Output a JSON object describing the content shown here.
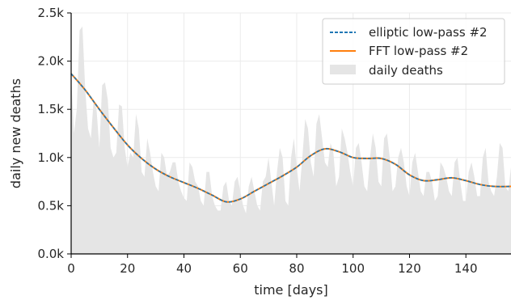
{
  "chart_data": {
    "type": "line",
    "title": "",
    "xlabel": "time [days]",
    "ylabel": "daily new deaths",
    "xlim": [
      0,
      156
    ],
    "ylim": [
      0,
      2500
    ],
    "xticks": [
      0,
      20,
      40,
      60,
      80,
      100,
      120,
      140
    ],
    "xtick_labels": [
      "0",
      "20",
      "40",
      "60",
      "80",
      "100",
      "120",
      "140"
    ],
    "yticks": [
      0,
      500,
      1000,
      1500,
      2000,
      2500
    ],
    "ytick_labels": [
      "0.0k",
      "0.5k",
      "1.0k",
      "1.5k",
      "2.0k",
      "2.5k"
    ],
    "grid": true,
    "legend_position": "top-right",
    "colors": {
      "elliptic": "#1f77b4",
      "fft": "#ff7f0e",
      "area": "#e5e5e5",
      "grid": "#ebebeb",
      "axis": "#000000"
    },
    "series": [
      {
        "name": "elliptic low-pass #2",
        "style": "dashed",
        "x": [
          0,
          5,
          10,
          15,
          20,
          25,
          30,
          35,
          40,
          45,
          50,
          55,
          60,
          65,
          70,
          75,
          80,
          85,
          90,
          95,
          100,
          105,
          110,
          115,
          120,
          125,
          130,
          135,
          140,
          145,
          150,
          156
        ],
        "values": [
          1870,
          1700,
          1500,
          1310,
          1130,
          990,
          880,
          800,
          740,
          680,
          610,
          540,
          570,
          650,
          730,
          810,
          900,
          1020,
          1090,
          1060,
          1000,
          990,
          990,
          930,
          820,
          760,
          770,
          790,
          760,
          720,
          700,
          700
        ]
      },
      {
        "name": "FFT low-pass #2",
        "style": "solid",
        "x": [
          0,
          5,
          10,
          15,
          20,
          25,
          30,
          35,
          40,
          45,
          50,
          55,
          60,
          65,
          70,
          75,
          80,
          85,
          90,
          95,
          100,
          105,
          110,
          115,
          120,
          125,
          130,
          135,
          140,
          145,
          150,
          156
        ],
        "values": [
          1870,
          1700,
          1500,
          1310,
          1130,
          990,
          880,
          800,
          740,
          680,
          610,
          540,
          570,
          650,
          730,
          810,
          900,
          1020,
          1090,
          1060,
          1000,
          990,
          990,
          930,
          820,
          760,
          770,
          790,
          760,
          720,
          700,
          700
        ]
      },
      {
        "name": "daily deaths",
        "style": "area",
        "x": [
          0,
          1,
          2,
          3,
          4,
          5,
          6,
          7,
          8,
          9,
          10,
          11,
          12,
          13,
          14,
          15,
          16,
          17,
          18,
          19,
          20,
          21,
          22,
          23,
          24,
          25,
          26,
          27,
          28,
          29,
          30,
          31,
          32,
          33,
          34,
          35,
          36,
          37,
          38,
          39,
          40,
          41,
          42,
          43,
          44,
          45,
          46,
          47,
          48,
          49,
          50,
          51,
          52,
          53,
          54,
          55,
          56,
          57,
          58,
          59,
          60,
          61,
          62,
          63,
          64,
          65,
          66,
          67,
          68,
          69,
          70,
          71,
          72,
          73,
          74,
          75,
          76,
          77,
          78,
          79,
          80,
          81,
          82,
          83,
          84,
          85,
          86,
          87,
          88,
          89,
          90,
          91,
          92,
          93,
          94,
          95,
          96,
          97,
          98,
          99,
          100,
          101,
          102,
          103,
          104,
          105,
          106,
          107,
          108,
          109,
          110,
          111,
          112,
          113,
          114,
          115,
          116,
          117,
          118,
          119,
          120,
          121,
          122,
          123,
          124,
          125,
          126,
          127,
          128,
          129,
          130,
          131,
          132,
          133,
          134,
          135,
          136,
          137,
          138,
          139,
          140,
          141,
          142,
          143,
          144,
          145,
          146,
          147,
          148,
          149,
          150,
          151,
          152,
          153,
          154,
          155,
          156
        ],
        "values": [
          1850,
          1250,
          1500,
          2320,
          2360,
          1700,
          1300,
          1200,
          1600,
          1500,
          1100,
          1750,
          1780,
          1600,
          1100,
          1000,
          1050,
          1550,
          1530,
          1100,
          900,
          1050,
          1000,
          1450,
          1300,
          850,
          800,
          1200,
          1050,
          850,
          700,
          650,
          1050,
          1000,
          800,
          850,
          950,
          950,
          750,
          650,
          580,
          550,
          950,
          900,
          750,
          700,
          550,
          500,
          850,
          850,
          600,
          500,
          450,
          450,
          700,
          750,
          550,
          500,
          750,
          800,
          650,
          500,
          420,
          700,
          800,
          650,
          500,
          450,
          750,
          800,
          1000,
          750,
          500,
          850,
          1100,
          1000,
          550,
          500,
          1000,
          1200,
          900,
          650,
          1000,
          1400,
          1300,
          950,
          800,
          1350,
          1450,
          1200,
          950,
          900,
          1150,
          1050,
          700,
          800,
          1300,
          1200,
          1050,
          850,
          700,
          1100,
          1150,
          950,
          700,
          650,
          1000,
          1250,
          1100,
          750,
          700,
          1200,
          1250,
          1000,
          650,
          700,
          1000,
          1100,
          950,
          700,
          600,
          950,
          1050,
          850,
          650,
          600,
          850,
          850,
          750,
          550,
          600,
          950,
          900,
          800,
          650,
          600,
          950,
          1000,
          750,
          550,
          550,
          850,
          950,
          800,
          600,
          600,
          1000,
          1100,
          750,
          650,
          600,
          800,
          1150,
          1100,
          700,
          650,
          900
        ]
      }
    ]
  }
}
